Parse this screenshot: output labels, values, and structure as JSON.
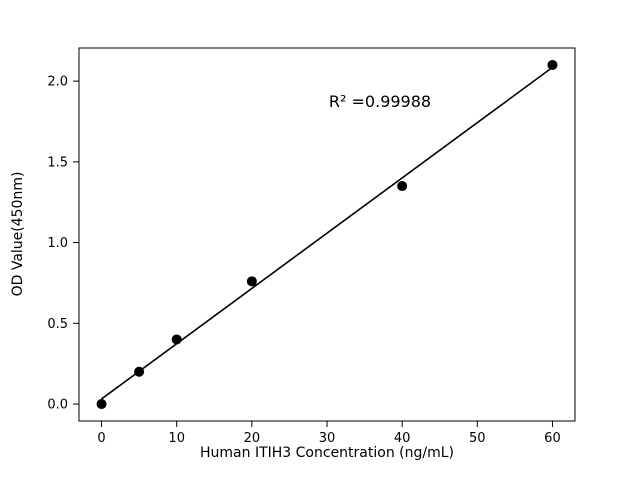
{
  "chart_data": {
    "type": "scatter",
    "title": "",
    "xlabel": "Human ITIH3 Concentration (ng/mL)",
    "ylabel": "OD Value(450nm)",
    "annotation": "R² =0.99988",
    "x": [
      0,
      5,
      10,
      20,
      40,
      60
    ],
    "y": [
      0.0,
      0.2,
      0.4,
      0.76,
      1.35,
      2.1
    ],
    "fit_line": {
      "x_start": 0,
      "x_end": 60
    },
    "xlim": [
      -3,
      63
    ],
    "ylim": [
      -0.105,
      2.205
    ],
    "xticks": [
      {
        "v": 0,
        "label": "0"
      },
      {
        "v": 10,
        "label": "10"
      },
      {
        "v": 20,
        "label": "20"
      },
      {
        "v": 30,
        "label": "30"
      },
      {
        "v": 40,
        "label": "40"
      },
      {
        "v": 50,
        "label": "50"
      },
      {
        "v": 60,
        "label": "60"
      }
    ],
    "yticks": [
      {
        "v": 0.0,
        "label": "0.0"
      },
      {
        "v": 0.5,
        "label": "0.5"
      },
      {
        "v": 1.0,
        "label": "1.0"
      },
      {
        "v": 1.5,
        "label": "1.5"
      },
      {
        "v": 2.0,
        "label": "2.0"
      }
    ],
    "grid": false,
    "legend": null,
    "marker_color": "#000000",
    "line_color": "#000000",
    "background_color": "#ffffff"
  }
}
